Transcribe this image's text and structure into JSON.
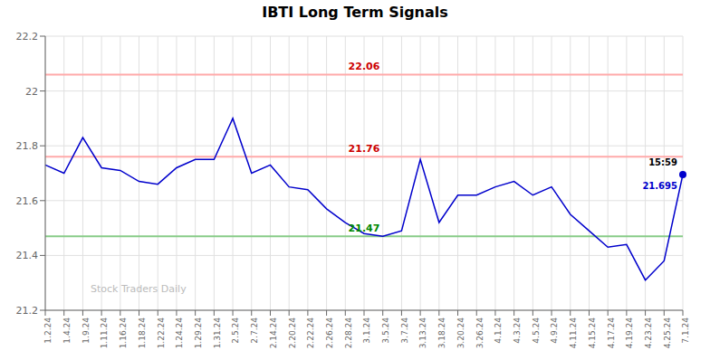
{
  "chart_data": {
    "type": "line",
    "title": "IBTI Long Term Signals",
    "categories": [
      "1.2.24",
      "1.4.24",
      "1.9.24",
      "1.11.24",
      "1.16.24",
      "1.18.24",
      "1.22.24",
      "1.24.24",
      "1.29.24",
      "1.31.24",
      "2.5.24",
      "2.7.24",
      "2.14.24",
      "2.20.24",
      "2.22.24",
      "2.26.24",
      "2.28.24",
      "3.1.24",
      "3.5.24",
      "3.7.24",
      "3.13.24",
      "3.18.24",
      "3.20.24",
      "3.26.24",
      "4.1.24",
      "4.3.24",
      "4.5.24",
      "4.9.24",
      "4.11.24",
      "4.15.24",
      "4.17.24",
      "4.19.24",
      "4.23.24",
      "4.25.24",
      "7.1.24"
    ],
    "values": [
      21.73,
      21.7,
      21.83,
      21.72,
      21.71,
      21.67,
      21.66,
      21.72,
      21.75,
      21.75,
      21.9,
      21.7,
      21.73,
      21.65,
      21.64,
      21.57,
      21.52,
      21.48,
      21.47,
      21.49,
      21.75,
      21.52,
      21.62,
      21.62,
      21.65,
      21.67,
      21.62,
      21.65,
      21.55,
      21.49,
      21.43,
      21.44,
      21.31,
      21.38,
      21.695
    ],
    "color": "#0000cc",
    "ylim": [
      21.2,
      22.2
    ],
    "yticks": [
      21.2,
      21.4,
      21.6,
      21.8,
      22,
      22.2
    ],
    "grid": true,
    "reference_lines": [
      {
        "value": 22.06,
        "color": "#ffaaaa"
      },
      {
        "value": 21.76,
        "color": "#ffaaaa"
      },
      {
        "value": 21.47,
        "color": "#88cc88"
      }
    ],
    "annotations": [
      {
        "text": "15:59",
        "x": "7.1.24",
        "y": 21.695
      },
      {
        "text": "21.695",
        "x": "7.1.24",
        "y": 21.695
      },
      {
        "text": "Stock Traders Daily"
      }
    ]
  }
}
